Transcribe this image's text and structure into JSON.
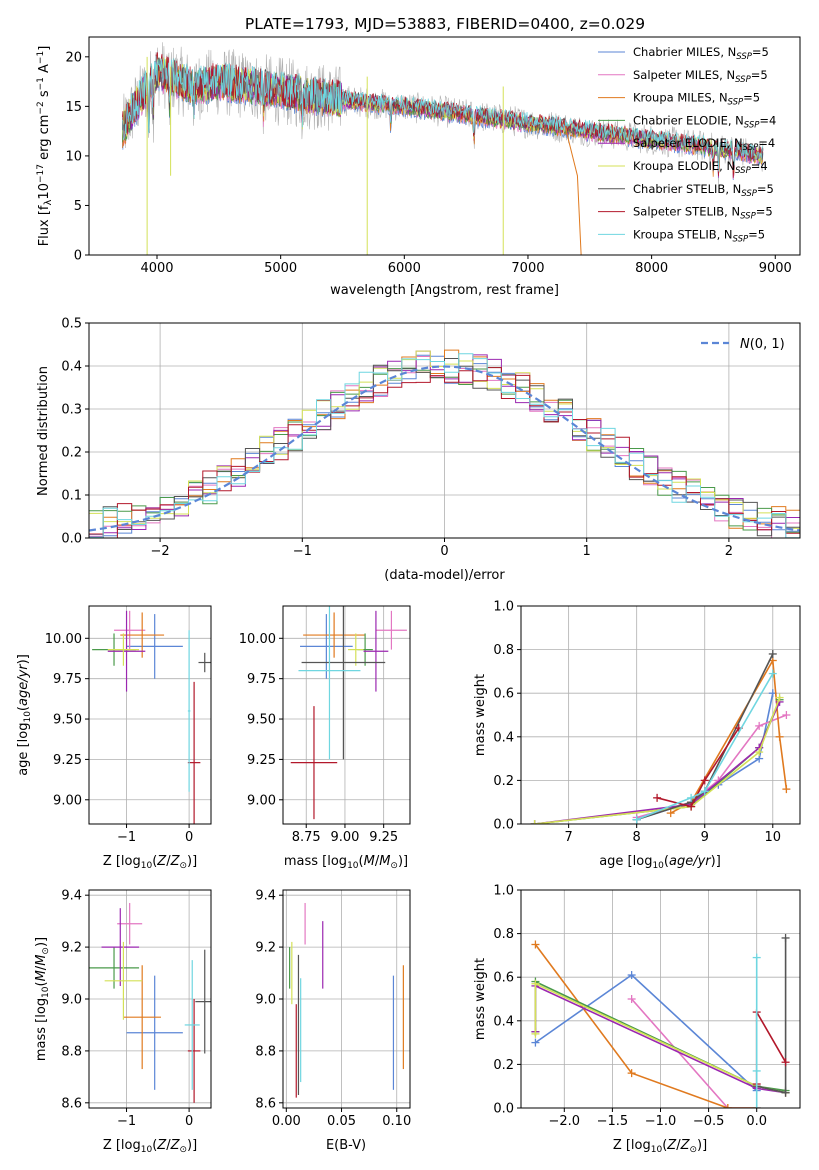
{
  "title": "PLATE=1793, MJD=53883, FIBERID=0400, z=0.029",
  "colors": {
    "Chabrier MILES": "#5b86d6",
    "Salpeter MILES": "#e377c2",
    "Kroupa MILES": "#e07a1f",
    "Chabrier ELODIE": "#4a9a4a",
    "Salpeter ELODIE": "#9b27b0",
    "Kroupa ELODIE": "#d4e157",
    "Chabrier STELIB": "#555555",
    "Salpeter STELIB": "#b2182b",
    "Kroupa STELIB": "#6fd6e0",
    "normal": "#5b86d6",
    "data": "#b0b0b0"
  },
  "chart_data": [
    {
      "id": "spectrum",
      "type": "line",
      "xlabel": "wavelength [Angstrom, rest frame]",
      "ylabel": "Flux [f_λ 10^-17 erg cm^-2 s^-1 A^-1]",
      "xlim": [
        3450,
        9200
      ],
      "ylim": [
        0,
        22
      ],
      "xticks": [
        4000,
        5000,
        6000,
        7000,
        8000,
        9000
      ],
      "yticks": [
        0,
        5,
        10,
        15,
        20
      ],
      "grid": false,
      "legend_position": "upper right",
      "continuum": {
        "x": [
          3720,
          3800,
          3900,
          3950,
          4000,
          4100,
          4200,
          4300,
          4500,
          4800,
          5000,
          5300,
          5600,
          6000,
          6300,
          6600,
          6900,
          7200,
          7500,
          7800,
          8100,
          8400,
          8700,
          8900
        ],
        "y": [
          12.5,
          14.5,
          16.5,
          17.5,
          18.5,
          18.0,
          17.5,
          17.0,
          17.5,
          17.0,
          16.5,
          16.0,
          15.5,
          15.0,
          14.5,
          14.0,
          13.5,
          13.0,
          12.5,
          12.0,
          11.5,
          11.0,
          10.5,
          10.0
        ]
      },
      "legend": [
        {
          "label": "Chabrier MILES",
          "nssp": 5
        },
        {
          "label": "Salpeter MILES",
          "nssp": 5
        },
        {
          "label": "Kroupa MILES",
          "nssp": 5
        },
        {
          "label": "Chabrier ELODIE",
          "nssp": 4
        },
        {
          "label": "Salpeter ELODIE",
          "nssp": 4
        },
        {
          "label": "Kroupa ELODIE",
          "nssp": 4
        },
        {
          "label": "Chabrier STELIB",
          "nssp": 5
        },
        {
          "label": "Salpeter STELIB",
          "nssp": 5
        },
        {
          "label": "Kroupa STELIB",
          "nssp": 5
        }
      ]
    },
    {
      "id": "residuals",
      "type": "histogram",
      "xlabel": "(data-model)/error",
      "ylabel": "Normed distribution",
      "xlim": [
        -2.5,
        2.5
      ],
      "ylim": [
        0,
        0.5
      ],
      "xticks": [
        -2,
        -1,
        0,
        1,
        2
      ],
      "yticks": [
        0.0,
        0.1,
        0.2,
        0.3,
        0.4,
        0.5
      ],
      "grid": true,
      "legend_label": "N(0,1)",
      "legend_position": "upper right",
      "bin_width": 0.1,
      "bin_start": -2.5
    },
    {
      "id": "age_vs_Z",
      "type": "scatter",
      "xlabel": "Z [log10(Z/Z_sun)]",
      "ylabel": "age [log10(age/yr)]",
      "xlim": [
        -1.6,
        0.35
      ],
      "ylim": [
        8.85,
        10.2
      ],
      "xticks": [
        -1,
        0
      ],
      "yticks": [
        9.0,
        9.25,
        9.5,
        9.75,
        10.0
      ],
      "grid": true,
      "points": [
        {
          "model": "Chabrier MILES",
          "x": -0.55,
          "y": 9.95,
          "xerr": 0.45,
          "yerr": 0.2
        },
        {
          "model": "Salpeter MILES",
          "x": -0.95,
          "y": 10.05,
          "xerr": 0.25,
          "yerr": 0.12
        },
        {
          "model": "Kroupa MILES",
          "x": -0.75,
          "y": 10.02,
          "xerr": 0.35,
          "yerr": 0.14
        },
        {
          "model": "Chabrier ELODIE",
          "x": -1.2,
          "y": 9.93,
          "xerr": 0.35,
          "yerr": 0.1
        },
        {
          "model": "Salpeter ELODIE",
          "x": -1.0,
          "y": 9.92,
          "xerr": 0.3,
          "yerr": 0.25
        },
        {
          "model": "Kroupa ELODIE",
          "x": -1.05,
          "y": 9.93,
          "xerr": 0.25,
          "yerr": 0.1
        },
        {
          "model": "Chabrier STELIB",
          "x": 0.25,
          "y": 9.85,
          "xerr": 0.1,
          "yerr": 0.06
        },
        {
          "model": "Salpeter STELIB",
          "x": 0.08,
          "y": 9.23,
          "xerr": 0.1,
          "yerr": 0.5
        },
        {
          "model": "Kroupa STELIB",
          "x": 0.0,
          "y": 9.55,
          "xerr": 0.02,
          "yerr": 0.5
        }
      ]
    },
    {
      "id": "age_vs_mass",
      "type": "scatter",
      "xlabel": "mass [log10(M/M_sun)]",
      "ylabel": "",
      "xlim": [
        8.6,
        9.42
      ],
      "ylim": [
        8.85,
        10.2
      ],
      "xticks": [
        8.75,
        9.0,
        9.25
      ],
      "yticks": [
        9.0,
        9.25,
        9.5,
        9.75,
        10.0
      ],
      "grid": true,
      "points": [
        {
          "model": "Chabrier MILES",
          "x": 8.88,
          "y": 9.95,
          "xerr": 0.17,
          "yerr": 0.2
        },
        {
          "model": "Salpeter MILES",
          "x": 9.3,
          "y": 10.05,
          "xerr": 0.1,
          "yerr": 0.12
        },
        {
          "model": "Kroupa MILES",
          "x": 8.93,
          "y": 10.02,
          "xerr": 0.2,
          "yerr": 0.14
        },
        {
          "model": "Chabrier ELODIE",
          "x": 9.13,
          "y": 9.93,
          "xerr": 0.05,
          "yerr": 0.1
        },
        {
          "model": "Salpeter ELODIE",
          "x": 9.2,
          "y": 9.92,
          "xerr": 0.08,
          "yerr": 0.25
        },
        {
          "model": "Kroupa ELODIE",
          "x": 9.07,
          "y": 9.93,
          "xerr": 0.05,
          "yerr": 0.1
        },
        {
          "model": "Chabrier STELIB",
          "x": 8.99,
          "y": 9.85,
          "xerr": 0.27,
          "yerr": 0.6
        },
        {
          "model": "Salpeter STELIB",
          "x": 8.8,
          "y": 9.23,
          "xerr": 0.15,
          "yerr": 0.35
        },
        {
          "model": "Kroupa STELIB",
          "x": 8.9,
          "y": 9.8,
          "xerr": 0.2,
          "yerr": 0.55
        }
      ]
    },
    {
      "id": "mass_weight_vs_age",
      "type": "line",
      "xlabel": "age [log10(age/yr)]",
      "ylabel": "mass weight",
      "xlim": [
        6.3,
        10.4
      ],
      "ylim": [
        0,
        1.0
      ],
      "xticks": [
        7,
        8,
        9,
        10
      ],
      "yticks": [
        0.0,
        0.2,
        0.4,
        0.6,
        0.8,
        1.0
      ],
      "grid": true,
      "series": [
        {
          "name": "Chabrier MILES",
          "x": [
            8.0,
            8.8,
            9.2,
            9.8,
            10.0
          ],
          "y": [
            0.02,
            0.1,
            0.18,
            0.3,
            0.6
          ]
        },
        {
          "name": "Salpeter MILES",
          "x": [
            8.0,
            8.8,
            9.2,
            9.8,
            10.2
          ],
          "y": [
            0.03,
            0.1,
            0.2,
            0.45,
            0.5
          ]
        },
        {
          "name": "Kroupa MILES",
          "x": [
            8.5,
            8.8,
            10.0,
            10.1,
            10.2
          ],
          "y": [
            0.05,
            0.1,
            0.75,
            0.4,
            0.16
          ]
        },
        {
          "name": "Chabrier ELODIE",
          "x": [
            6.5,
            8.8,
            9.8,
            10.1
          ],
          "y": [
            0.0,
            0.08,
            0.35,
            0.57
          ]
        },
        {
          "name": "Salpeter ELODIE",
          "x": [
            6.5,
            8.8,
            9.8,
            10.1
          ],
          "y": [
            0.0,
            0.09,
            0.35,
            0.56
          ]
        },
        {
          "name": "Kroupa ELODIE",
          "x": [
            6.5,
            8.8,
            9.8,
            10.1
          ],
          "y": [
            0.0,
            0.08,
            0.33,
            0.58
          ]
        },
        {
          "name": "Chabrier STELIB",
          "x": [
            8.0,
            8.8,
            9.0,
            10.0
          ],
          "y": [
            0.02,
            0.1,
            0.15,
            0.78
          ]
        },
        {
          "name": "Salpeter STELIB",
          "x": [
            8.3,
            8.8,
            9.0,
            9.5
          ],
          "y": [
            0.12,
            0.08,
            0.2,
            0.44
          ]
        },
        {
          "name": "Kroupa STELIB",
          "x": [
            8.0,
            8.8,
            9.0,
            10.0
          ],
          "y": [
            0.02,
            0.12,
            0.15,
            0.69
          ]
        }
      ]
    },
    {
      "id": "mass_vs_Z",
      "type": "scatter",
      "xlabel": "Z [log10(Z/Z_sun)]",
      "ylabel": "mass [log10(M/M_sun)]",
      "xlim": [
        -1.6,
        0.35
      ],
      "ylim": [
        8.58,
        9.42
      ],
      "xticks": [
        -1,
        0
      ],
      "yticks": [
        8.6,
        8.8,
        9.0,
        9.2,
        9.4
      ],
      "grid": true,
      "points": [
        {
          "model": "Chabrier MILES",
          "x": -0.55,
          "y": 8.87,
          "xerr": 0.45,
          "yerr": 0.22
        },
        {
          "model": "Salpeter MILES",
          "x": -0.95,
          "y": 9.29,
          "xerr": 0.2,
          "yerr": 0.08
        },
        {
          "model": "Kroupa MILES",
          "x": -0.75,
          "y": 8.93,
          "xerr": 0.3,
          "yerr": 0.2
        },
        {
          "model": "Chabrier ELODIE",
          "x": -1.2,
          "y": 9.12,
          "xerr": 0.4,
          "yerr": 0.08
        },
        {
          "model": "Salpeter ELODIE",
          "x": -1.1,
          "y": 9.2,
          "xerr": 0.3,
          "yerr": 0.15
        },
        {
          "model": "Kroupa ELODIE",
          "x": -1.05,
          "y": 9.07,
          "xerr": 0.3,
          "yerr": 0.15
        },
        {
          "model": "Chabrier STELIB",
          "x": 0.25,
          "y": 8.99,
          "xerr": 0.15,
          "yerr": 0.2
        },
        {
          "model": "Salpeter STELIB",
          "x": 0.08,
          "y": 8.8,
          "xerr": 0.1,
          "yerr": 0.2
        },
        {
          "model": "Kroupa STELIB",
          "x": 0.05,
          "y": 8.9,
          "xerr": 0.12,
          "yerr": 0.25
        }
      ]
    },
    {
      "id": "mass_vs_ebv",
      "type": "scatter",
      "xlabel": "E(B-V)",
      "ylabel": "",
      "xlim": [
        -0.003,
        0.112
      ],
      "ylim": [
        8.58,
        9.42
      ],
      "xticks": [
        0.0,
        0.05,
        0.1
      ],
      "yticks": [
        8.6,
        8.8,
        9.0,
        9.2,
        9.4
      ],
      "grid": true,
      "points": [
        {
          "model": "Chabrier MILES",
          "x": 0.097,
          "y": 8.87,
          "xerr": 0,
          "yerr": 0.22
        },
        {
          "model": "Salpeter MILES",
          "x": 0.017,
          "y": 9.29,
          "xerr": 0,
          "yerr": 0.08
        },
        {
          "model": "Kroupa MILES",
          "x": 0.106,
          "y": 8.93,
          "xerr": 0,
          "yerr": 0.2
        },
        {
          "model": "Chabrier ELODIE",
          "x": 0.003,
          "y": 9.12,
          "xerr": 0,
          "yerr": 0.08
        },
        {
          "model": "Salpeter ELODIE",
          "x": 0.033,
          "y": 9.17,
          "xerr": 0,
          "yerr": 0.13
        },
        {
          "model": "Kroupa ELODIE",
          "x": 0.005,
          "y": 9.1,
          "xerr": 0,
          "yerr": 0.12
        },
        {
          "model": "Chabrier STELIB",
          "x": 0.011,
          "y": 8.9,
          "xerr": 0,
          "yerr": 0.27
        },
        {
          "model": "Salpeter STELIB",
          "x": 0.009,
          "y": 8.8,
          "xerr": 0,
          "yerr": 0.18
        },
        {
          "model": "Kroupa STELIB",
          "x": 0.013,
          "y": 8.88,
          "xerr": 0,
          "yerr": 0.2
        }
      ]
    },
    {
      "id": "mass_weight_vs_Z",
      "type": "line",
      "xlabel": "Z [log10(Z/Z_sun)]",
      "ylabel": "mass weight",
      "xlim": [
        -2.45,
        0.45
      ],
      "ylim": [
        0,
        1.0
      ],
      "xticks": [
        -2.0,
        -1.5,
        -1.0,
        -0.5,
        0.0
      ],
      "yticks": [
        0.0,
        0.2,
        0.4,
        0.6,
        0.8,
        1.0
      ],
      "grid": true,
      "series": [
        {
          "name": "Chabrier MILES",
          "x": [
            -2.3,
            -1.3,
            0.0
          ],
          "y": [
            0.3,
            0.61,
            0.08
          ]
        },
        {
          "name": "Salpeter MILES",
          "x": [
            -1.3,
            -0.3,
            0.0
          ],
          "y": [
            0.5,
            0.0,
            0.0
          ]
        },
        {
          "name": "Kroupa MILES",
          "x": [
            -2.3,
            -1.3,
            -0.3,
            0.0
          ],
          "y": [
            0.75,
            0.16,
            0.0,
            0.0
          ]
        },
        {
          "name": "Chabrier ELODIE",
          "x": [
            -2.3,
            -2.3,
            0.0,
            0.3
          ],
          "y": [
            0.35,
            0.58,
            0.1,
            0.08
          ]
        },
        {
          "name": "Salpeter ELODIE",
          "x": [
            -2.3,
            -2.3,
            0.0,
            0.3
          ],
          "y": [
            0.35,
            0.56,
            0.09,
            0.07
          ]
        },
        {
          "name": "Kroupa ELODIE",
          "x": [
            -2.3,
            -2.3,
            0.0,
            0.3
          ],
          "y": [
            0.34,
            0.57,
            0.1,
            0.07
          ]
        },
        {
          "name": "Chabrier STELIB",
          "x": [
            0.0,
            0.3,
            0.3
          ],
          "y": [
            0.1,
            0.07,
            0.78
          ]
        },
        {
          "name": "Salpeter STELIB",
          "x": [
            0.0,
            0.0,
            0.3
          ],
          "y": [
            0.11,
            0.44,
            0.21
          ]
        },
        {
          "name": "Kroupa STELIB",
          "x": [
            0.0,
            0.0,
            0.0
          ],
          "y": [
            0.0,
            0.17,
            0.69
          ]
        }
      ]
    }
  ]
}
